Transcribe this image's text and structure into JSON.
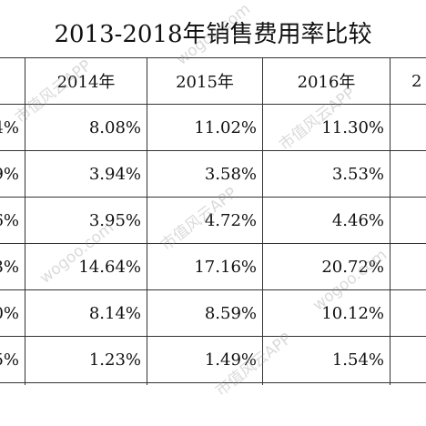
{
  "title": "2013-2018年销售费用率比较",
  "header": {
    "col_first_partial": "",
    "col_2014": "2014年",
    "col_2015": "2015年",
    "col_2016": "2016年",
    "col_last_partial": "2"
  },
  "rows": [
    {
      "first": "4%",
      "y2014": "8.08%",
      "y2015": "11.02%",
      "y2016": "11.30%"
    },
    {
      "first": "9%",
      "y2014": "3.94%",
      "y2015": "3.58%",
      "y2016": "3.53%"
    },
    {
      "first": "6%",
      "y2014": "3.95%",
      "y2015": "4.72%",
      "y2016": "4.46%"
    },
    {
      "first": "3%",
      "y2014": "14.64%",
      "y2015": "17.16%",
      "y2016": "20.72%"
    },
    {
      "first": "0%",
      "y2014": "8.14%",
      "y2015": "8.59%",
      "y2016": "10.12%"
    },
    {
      "first": "5%",
      "y2014": "1.23%",
      "y2015": "1.49%",
      "y2016": "1.54%"
    }
  ],
  "watermark": {
    "text_a": "市值风云APP",
    "text_b": "wogoo.com"
  }
}
